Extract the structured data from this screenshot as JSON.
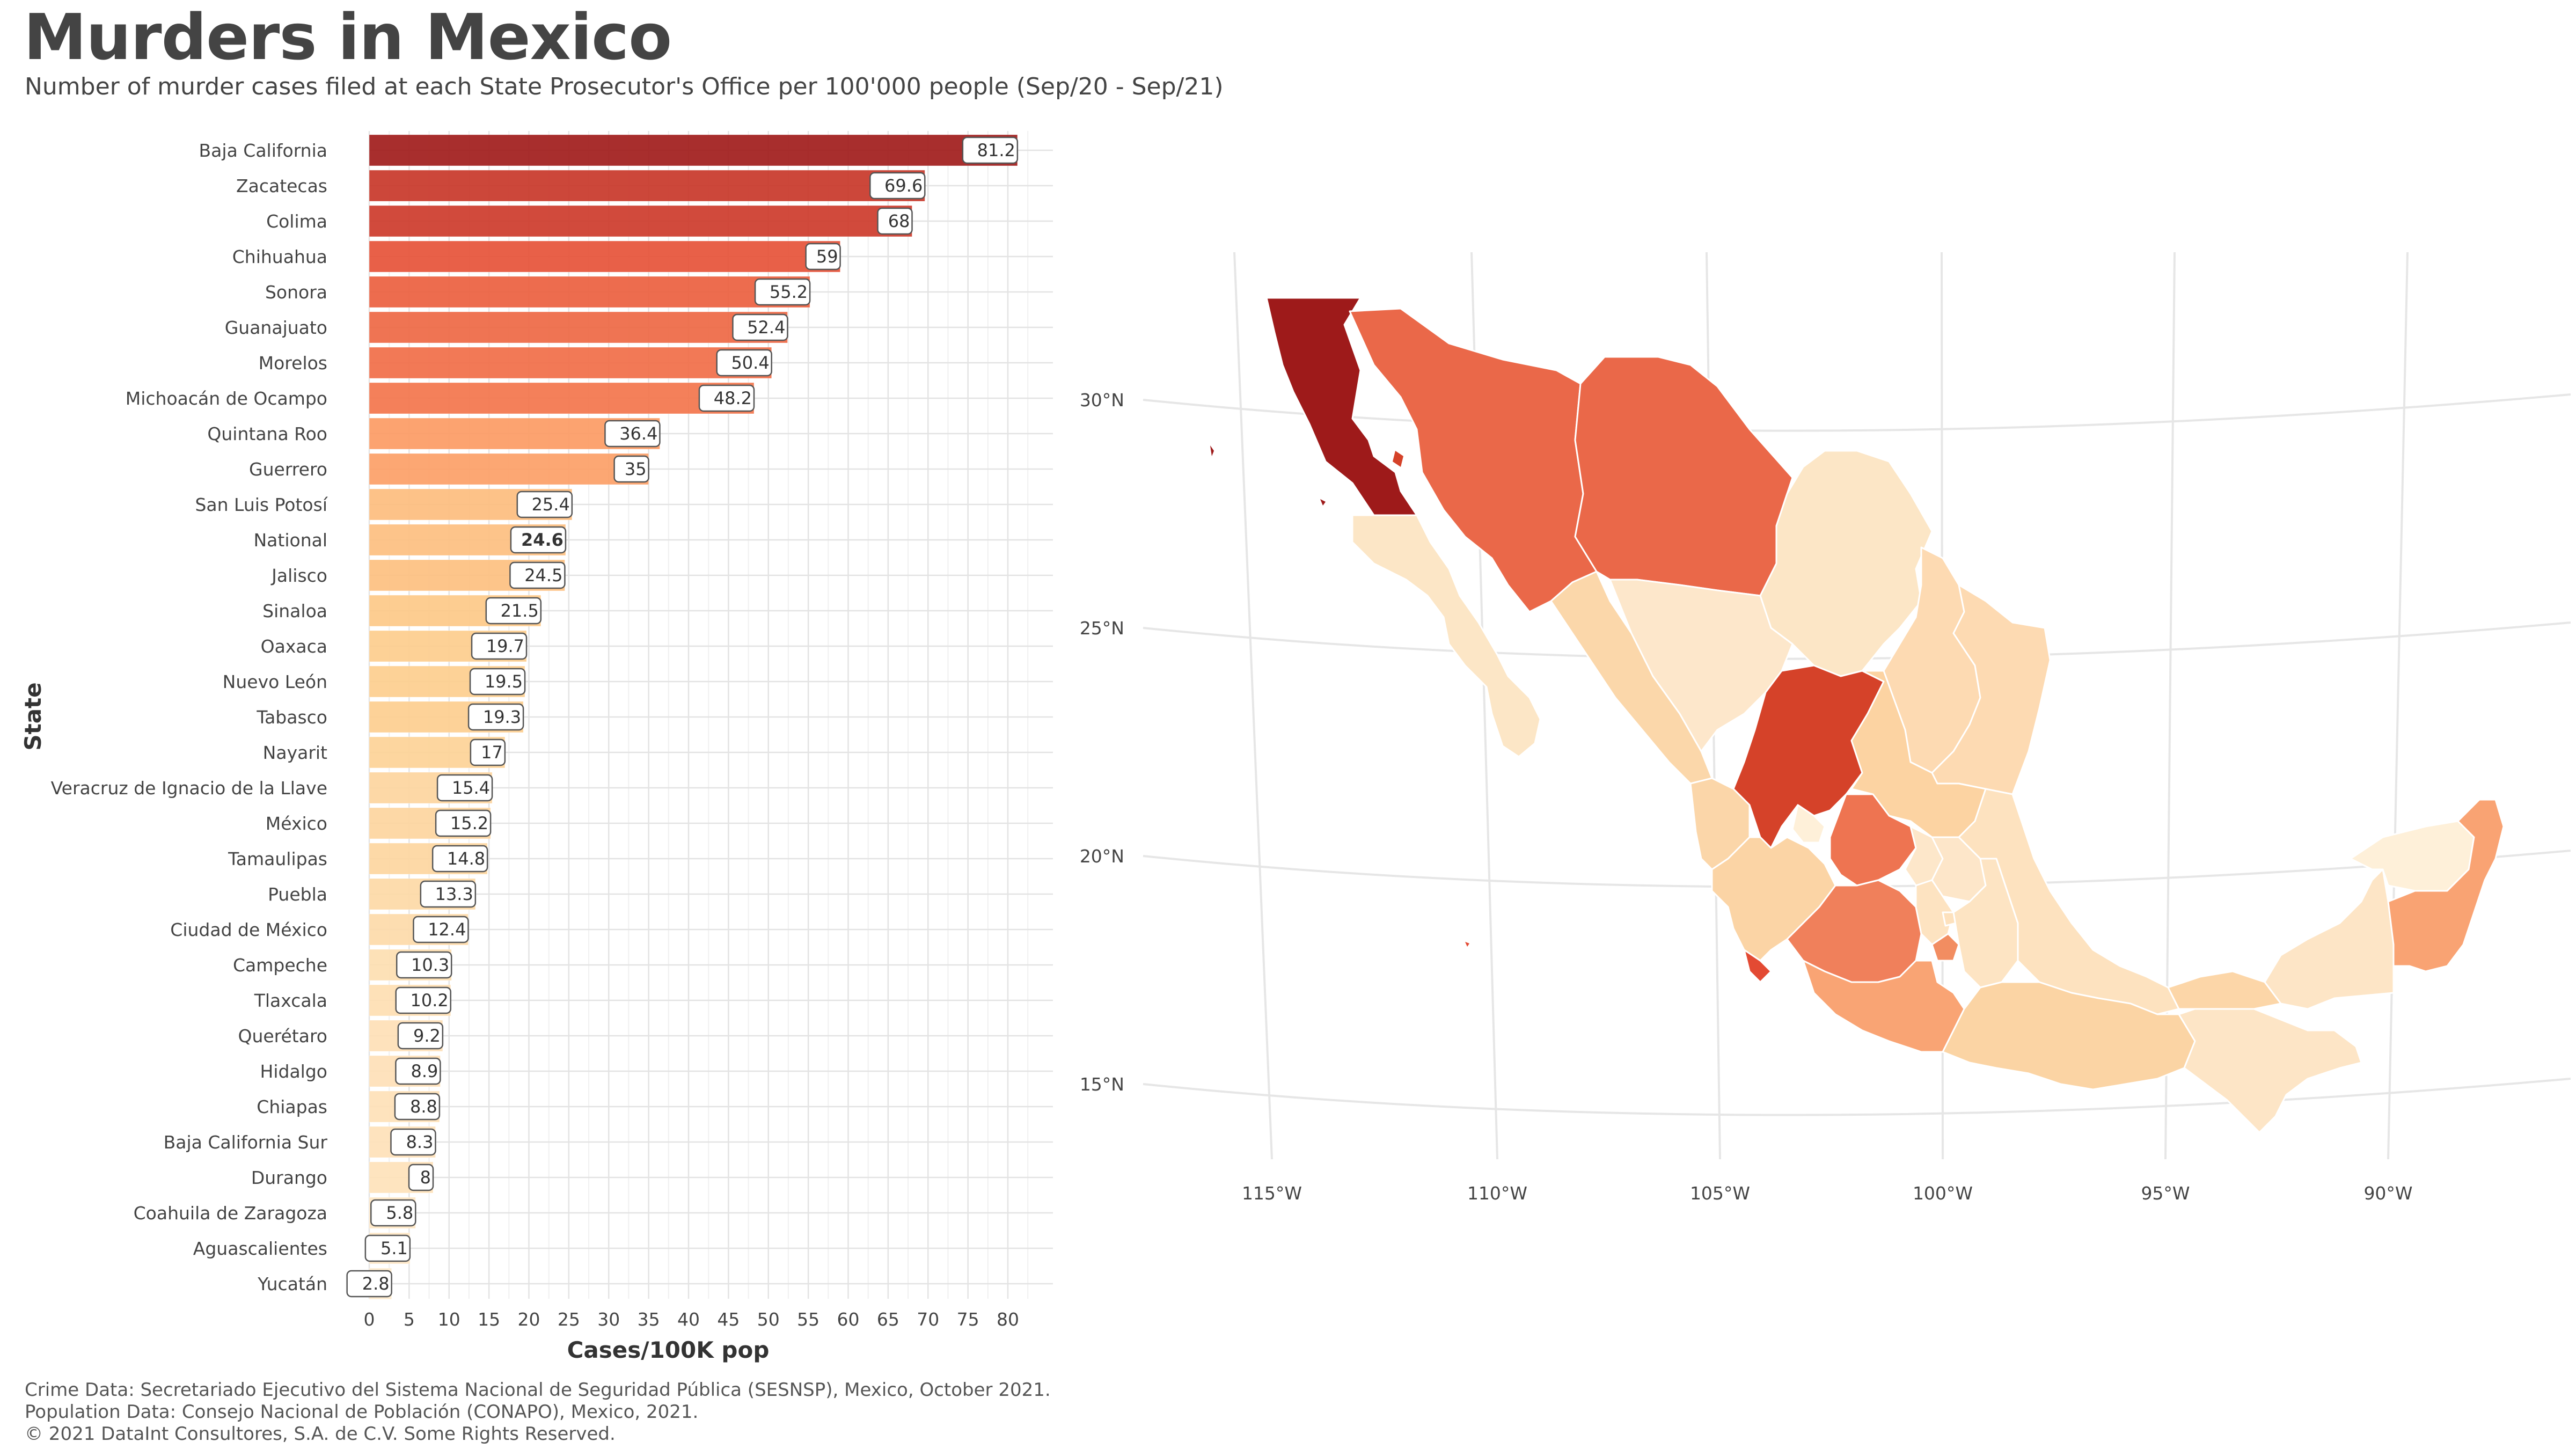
{
  "title": "Murders in Mexico",
  "subtitle": "Number of murder cases filed at each State Prosecutor's Office per 100'000 people (Sep/20 - Sep/21)",
  "caption": [
    "Crime Data: Secretariado Ejecutivo del Sistema Nacional de Seguridad Pública (SESNSP), Mexico, October 2021.",
    "Population Data: Consejo Nacional de Población (CONAPO), Mexico, 2021.",
    "© 2021 DataInt Consultores, S.A. de C.V. Some Rights Reserved."
  ],
  "chart_data": [
    {
      "type": "bar",
      "orientation": "horizontal",
      "xlabel": "Cases/100K pop",
      "ylabel": "State",
      "xlim": [
        0,
        85
      ],
      "xticks": [
        0,
        5,
        10,
        15,
        20,
        25,
        30,
        35,
        40,
        45,
        50,
        55,
        60,
        65,
        70,
        75,
        80
      ],
      "grid": true,
      "highlight": "National",
      "categories": [
        "Baja California",
        "Zacatecas",
        "Colima",
        "Chihuahua",
        "Sonora",
        "Guanajuato",
        "Morelos",
        "Michoacán de Ocampo",
        "Quintana Roo",
        "Guerrero",
        "San Luis Potosí",
        "National",
        "Jalisco",
        "Sinaloa",
        "Oaxaca",
        "Nuevo León",
        "Tabasco",
        "Nayarit",
        "Veracruz de Ignacio de la Llave",
        "México",
        "Tamaulipas",
        "Puebla",
        "Ciudad de México",
        "Campeche",
        "Tlaxcala",
        "Querétaro",
        "Hidalgo",
        "Chiapas",
        "Baja California Sur",
        "Durango",
        "Coahuila de Zaragoza",
        "Aguascalientes",
        "Yucatán"
      ],
      "values": [
        81.2,
        69.6,
        68,
        59,
        55.2,
        52.4,
        50.4,
        48.2,
        36.4,
        35,
        25.4,
        24.6,
        24.5,
        21.5,
        19.7,
        19.5,
        19.3,
        17,
        15.4,
        15.2,
        14.8,
        13.3,
        12.4,
        10.3,
        10.2,
        9.2,
        8.9,
        8.8,
        8.3,
        8,
        5.8,
        5.1,
        2.8
      ],
      "value_labels": [
        "81.2",
        "69.6",
        "68",
        "59",
        "55.2",
        "52.4",
        "50.4",
        "48.2",
        "36.4",
        "35",
        "25.4",
        "24.6",
        "24.5",
        "21.5",
        "19.7",
        "19.5",
        "19.3",
        "17",
        "15.4",
        "15.2",
        "14.8",
        "13.3",
        "12.4",
        "10.3",
        "10.2",
        "9.2",
        "8.9",
        "8.8",
        "8.3",
        "8",
        "5.8",
        "5.1",
        "2.8"
      ],
      "color_scale": [
        "#fef0d9",
        "#fdcc8a",
        "#fc8d59",
        "#e34a33",
        "#9e1a1a"
      ]
    },
    {
      "type": "choropleth",
      "region": "Mexico",
      "lon_ticks": [
        "115°W",
        "110°W",
        "105°W",
        "100°W",
        "95°W",
        "90°W"
      ],
      "lat_ticks": [
        "30°N",
        "25°N",
        "20°N",
        "15°N"
      ],
      "grid": true,
      "legend": "none"
    }
  ]
}
